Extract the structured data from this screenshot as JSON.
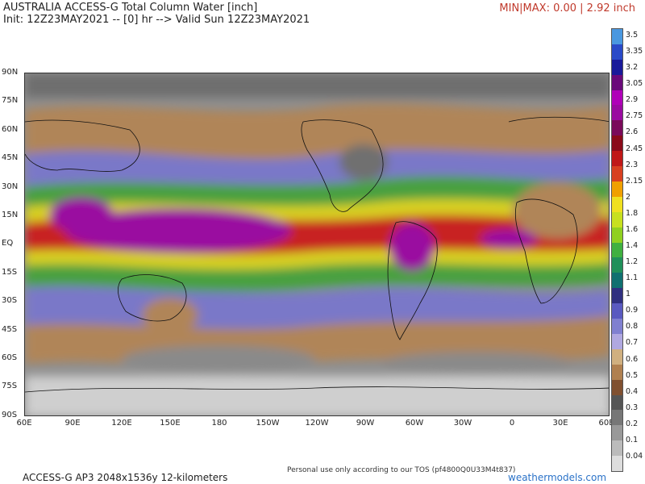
{
  "header": {
    "title": "AUSTRALIA ACCESS-G Total Column Water [inch]",
    "init_line": "Init: 12Z23MAY2021 -- [0] hr --> Valid Sun 12Z23MAY2021",
    "minmax": "MIN|MAX: 0.00 | 2.92 inch"
  },
  "map": {
    "lat_labels": [
      "90N",
      "75N",
      "60N",
      "45N",
      "30N",
      "15N",
      "EQ",
      "15S",
      "30S",
      "45S",
      "60S",
      "75S",
      "90S"
    ],
    "lon_labels": [
      "60E",
      "90E",
      "120E",
      "150E",
      "180",
      "150W",
      "120W",
      "90W",
      "60W",
      "30W",
      "0",
      "30E",
      "60E"
    ]
  },
  "colorbar": {
    "ticks": [
      "3.5",
      "3.35",
      "3.2",
      "3.05",
      "2.9",
      "2.75",
      "2.6",
      "2.45",
      "2.3",
      "2.15",
      "2",
      "1.8",
      "1.6",
      "1.4",
      "1.2",
      "1.1",
      "1",
      "0.9",
      "0.8",
      "0.7",
      "0.6",
      "0.5",
      "0.4",
      "0.3",
      "0.2",
      "0.1",
      "0.04"
    ],
    "colors": [
      "#4a98e0",
      "#2a4ac8",
      "#1a1a9a",
      "#6a0a7a",
      "#b000b8",
      "#9a0aa0",
      "#7a0a5a",
      "#8a0a1a",
      "#c01818",
      "#d84020",
      "#f0a000",
      "#f0e020",
      "#c8e020",
      "#90d020",
      "#40b040",
      "#20905a",
      "#107070",
      "#303080",
      "#5a5ac0",
      "#8080d0",
      "#b0a8e0",
      "#d0b080",
      "#b08050",
      "#805030",
      "#555555",
      "#777777",
      "#999999",
      "#bbbbbb",
      "#dddddd"
    ]
  },
  "footer": {
    "model_info": "ACCESS-G AP3 2048x1536y 12-kilometers",
    "tos": "Personal use only according to our TOS (pf4800Q0U33M4t837)",
    "site": "weathermodels.com"
  }
}
